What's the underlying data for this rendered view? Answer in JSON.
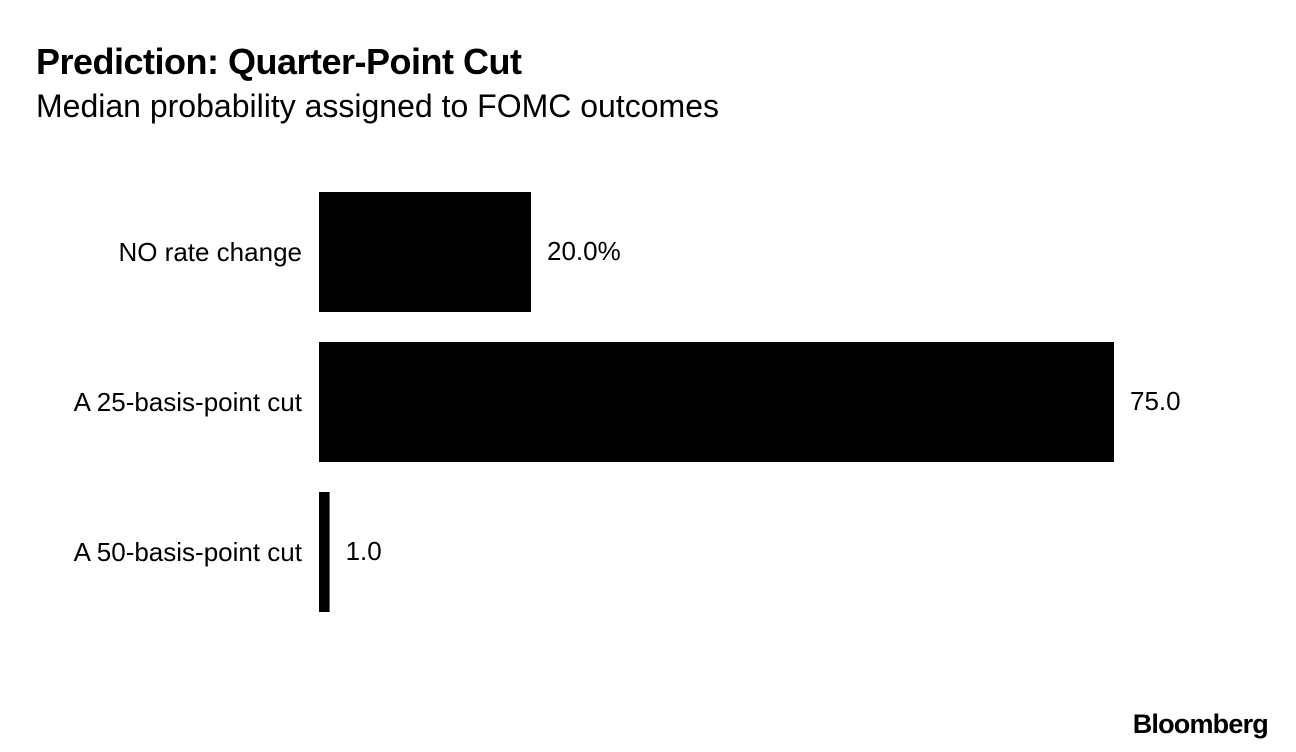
{
  "header": {
    "title": "Prediction: Quarter-Point Cut",
    "subtitle": "Median probability assigned to FOMC outcomes"
  },
  "brand": {
    "logo_text": "Bloomberg"
  },
  "colors": {
    "bar": "#000000",
    "text": "#000000",
    "background": "#ffffff"
  },
  "chart_data": {
    "type": "bar",
    "orientation": "horizontal",
    "title": "Prediction: Quarter-Point Cut",
    "subtitle": "Median probability assigned to FOMC outcomes",
    "categories": [
      "NO rate change",
      "A 25-basis-point cut",
      "A 50-basis-point cut"
    ],
    "values": [
      20.0,
      75.0,
      1.0
    ],
    "value_labels": [
      "20.0%",
      "75.0",
      "1.0"
    ],
    "unit": "%",
    "xlim": [
      0,
      75
    ],
    "grid": false,
    "legend": "none",
    "xlabel": "",
    "ylabel": ""
  }
}
